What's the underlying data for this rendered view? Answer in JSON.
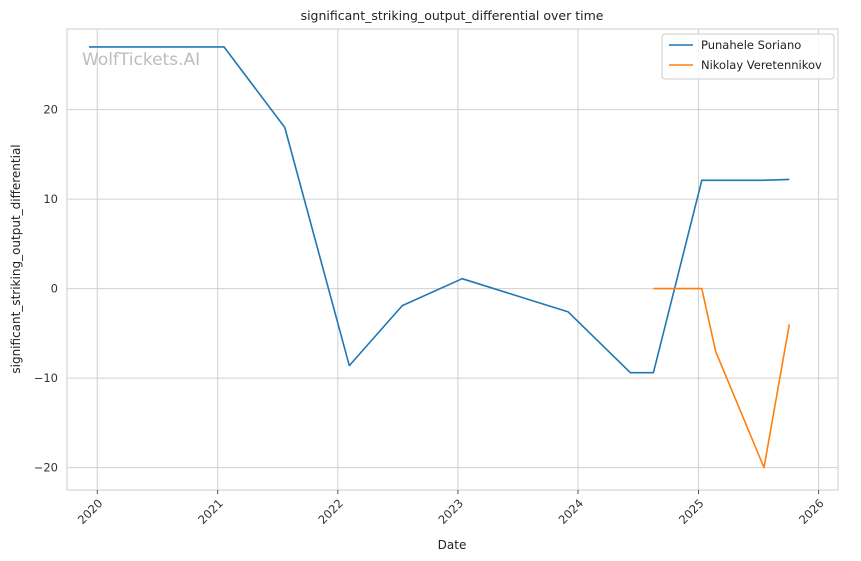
{
  "chart_data": {
    "type": "line",
    "title": "significant_striking_output_differential over time",
    "xlabel": "Date",
    "ylabel": "significant_striking_output_differential",
    "watermark": "WolfTickets.AI",
    "x_ticks": [
      "2020",
      "2021",
      "2022",
      "2023",
      "2024",
      "2025",
      "2026"
    ],
    "y_ticks": [
      -20,
      -10,
      0,
      10,
      20
    ],
    "xlim": [
      "2019-10-01",
      "2026-03-01"
    ],
    "ylim": [
      -22.5,
      29
    ],
    "grid": true,
    "legend_position": "top-right",
    "series": [
      {
        "name": "Punahele Soriano",
        "color": "#1f77b4",
        "points": [
          {
            "x": "2019-12-07",
            "y": 27
          },
          {
            "x": "2021-01-20",
            "y": 27
          },
          {
            "x": "2021-07-24",
            "y": 18
          },
          {
            "x": "2022-02-05",
            "y": -8.6
          },
          {
            "x": "2022-07-16",
            "y": -1.9
          },
          {
            "x": "2023-01-14",
            "y": 1.1
          },
          {
            "x": "2023-12-02",
            "y": -2.6
          },
          {
            "x": "2024-06-08",
            "y": -9.4
          },
          {
            "x": "2024-08-17",
            "y": -9.4
          },
          {
            "x": "2025-01-11",
            "y": 12.1
          },
          {
            "x": "2025-07-12",
            "y": 12.1
          },
          {
            "x": "2025-10-04",
            "y": 12.2
          }
        ]
      },
      {
        "name": "Nikolay Veretennikov",
        "color": "#ff7f0e",
        "points": [
          {
            "x": "2024-08-17",
            "y": 0
          },
          {
            "x": "2025-01-11",
            "y": 0
          },
          {
            "x": "2025-02-22",
            "y": -7
          },
          {
            "x": "2025-07-19",
            "y": -20
          },
          {
            "x": "2025-10-04",
            "y": -4
          }
        ]
      }
    ]
  }
}
